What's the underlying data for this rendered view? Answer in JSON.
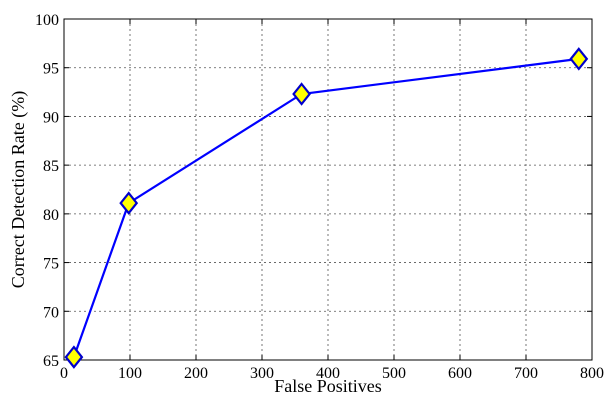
{
  "chart_data": {
    "type": "line",
    "title": "",
    "xlabel": "False Positives",
    "ylabel": "Correct Detection Rate (%)",
    "xlim": [
      0,
      800
    ],
    "ylim": [
      65,
      100
    ],
    "x_ticks": [
      0,
      100,
      200,
      300,
      400,
      500,
      600,
      700,
      800
    ],
    "y_ticks": [
      65,
      70,
      75,
      80,
      85,
      90,
      95,
      100
    ],
    "grid": true,
    "series": [
      {
        "x": [
          15,
          98,
          360,
          780
        ],
        "y": [
          65.3,
          81.1,
          92.3,
          95.9
        ],
        "line_color": "#0000ff",
        "marker": "diamond",
        "marker_fill": "#ffff00",
        "marker_edge": "#0000cc"
      }
    ]
  }
}
